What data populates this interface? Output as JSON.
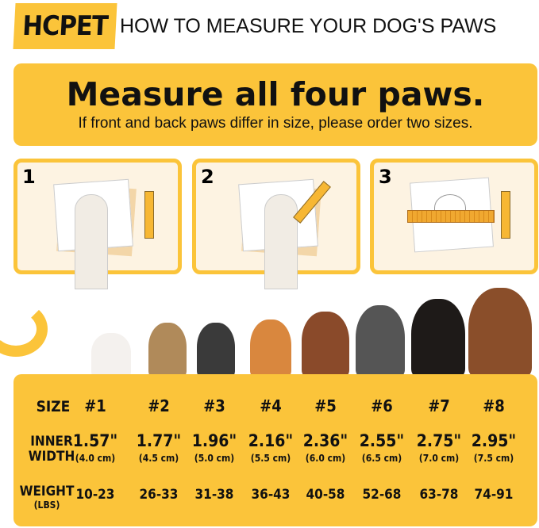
{
  "brand": "HCPET",
  "title": "HOW TO MEASURE YOUR DOG'S PAWS",
  "banner": {
    "headline": "Measure all four paws.",
    "subtext": "If front and back paws differ in size, please order two sizes."
  },
  "steps": [
    {
      "number": "1"
    },
    {
      "number": "2"
    },
    {
      "number": "3"
    }
  ],
  "colors": {
    "accent": "#fbc43a",
    "panel": "#fdf3e2"
  },
  "table": {
    "size_label": "SIZE",
    "width_label_1": "INNER",
    "width_label_2": "WIDTH",
    "weight_label": "WEIGHT",
    "weight_unit": "(LBS)",
    "columns": [
      {
        "size": "#1",
        "inch": "1.57\"",
        "cm": "(4.0 cm)",
        "weight": "10-23"
      },
      {
        "size": "#2",
        "inch": "1.77\"",
        "cm": "(4.5 cm)",
        "weight": "26-33"
      },
      {
        "size": "#3",
        "inch": "1.96\"",
        "cm": "(5.0 cm)",
        "weight": "31-38"
      },
      {
        "size": "#4",
        "inch": "2.16\"",
        "cm": "(5.5 cm)",
        "weight": "36-43"
      },
      {
        "size": "#5",
        "inch": "2.36\"",
        "cm": "(6.0 cm)",
        "weight": "40-58"
      },
      {
        "size": "#6",
        "inch": "2.55\"",
        "cm": "(6.5 cm)",
        "weight": "52-68"
      },
      {
        "size": "#7",
        "inch": "2.75\"",
        "cm": "(7.0 cm)",
        "weight": "63-78"
      },
      {
        "size": "#8",
        "inch": "2.95\"",
        "cm": "(7.5 cm)",
        "weight": "74-91"
      }
    ]
  }
}
